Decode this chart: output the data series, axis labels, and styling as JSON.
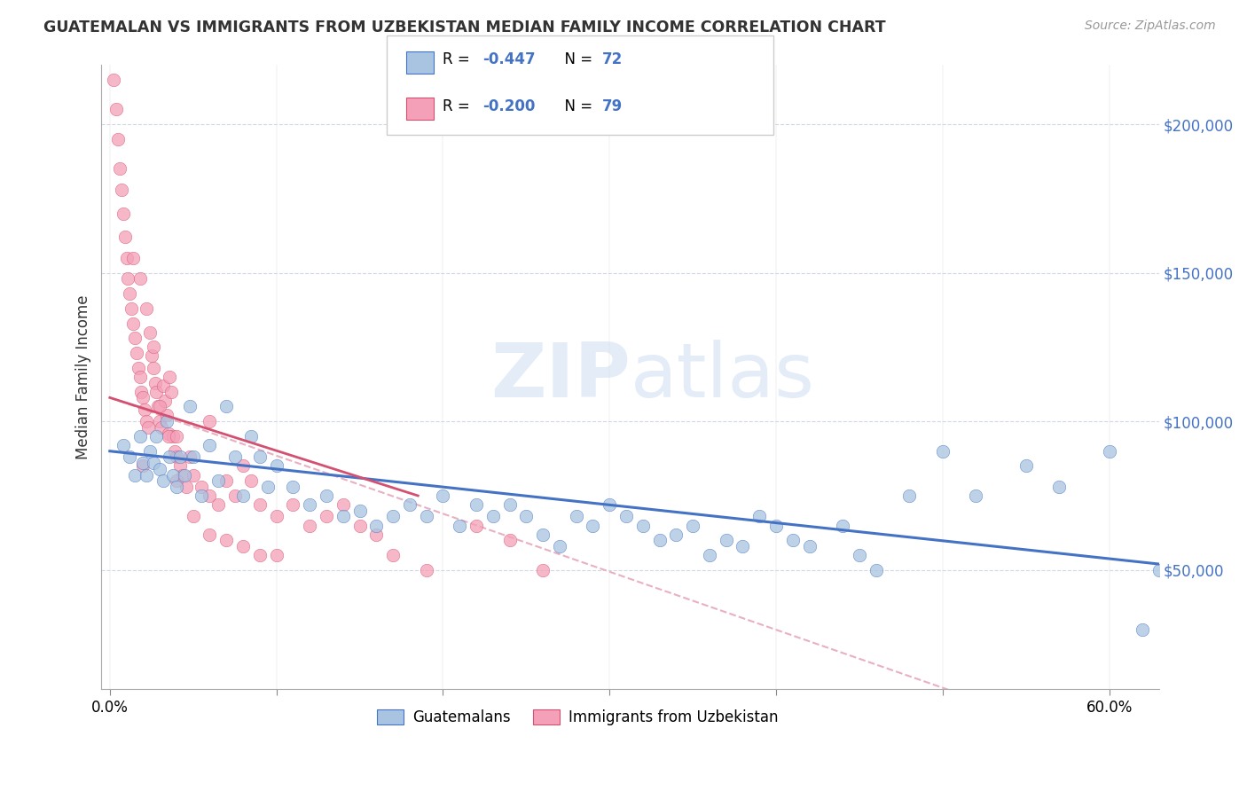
{
  "title": "GUATEMALAN VS IMMIGRANTS FROM UZBEKISTAN MEDIAN FAMILY INCOME CORRELATION CHART",
  "source": "Source: ZipAtlas.com",
  "ylabel": "Median Family Income",
  "watermark": "ZIPatlas",
  "legend_blue_label": "Guatemalans",
  "legend_pink_label": "Immigrants from Uzbekistan",
  "blue_color": "#a8c4e0",
  "pink_color": "#f4a0b8",
  "trend_blue_color": "#4472c4",
  "trend_pink_color": "#d45070",
  "r_value_color": "#4472c4",
  "n_value_color": "#4472c4",
  "ytick_color": "#4472c4",
  "xlim": [
    -0.005,
    0.63
  ],
  "ylim": [
    10000,
    220000
  ],
  "blue_scatter_x": [
    0.008,
    0.012,
    0.015,
    0.018,
    0.02,
    0.022,
    0.024,
    0.026,
    0.028,
    0.03,
    0.032,
    0.034,
    0.036,
    0.038,
    0.04,
    0.042,
    0.045,
    0.048,
    0.05,
    0.055,
    0.06,
    0.065,
    0.07,
    0.075,
    0.08,
    0.085,
    0.09,
    0.095,
    0.1,
    0.11,
    0.12,
    0.13,
    0.14,
    0.15,
    0.16,
    0.17,
    0.18,
    0.19,
    0.2,
    0.21,
    0.22,
    0.23,
    0.24,
    0.25,
    0.26,
    0.27,
    0.28,
    0.29,
    0.3,
    0.31,
    0.32,
    0.33,
    0.34,
    0.35,
    0.36,
    0.37,
    0.38,
    0.39,
    0.4,
    0.41,
    0.42,
    0.44,
    0.45,
    0.46,
    0.48,
    0.5,
    0.52,
    0.55,
    0.57,
    0.6,
    0.62,
    0.63
  ],
  "blue_scatter_y": [
    92000,
    88000,
    82000,
    95000,
    86000,
    82000,
    90000,
    86000,
    95000,
    84000,
    80000,
    100000,
    88000,
    82000,
    78000,
    88000,
    82000,
    105000,
    88000,
    75000,
    92000,
    80000,
    105000,
    88000,
    75000,
    95000,
    88000,
    78000,
    85000,
    78000,
    72000,
    75000,
    68000,
    70000,
    65000,
    68000,
    72000,
    68000,
    75000,
    65000,
    72000,
    68000,
    72000,
    68000,
    62000,
    58000,
    68000,
    65000,
    72000,
    68000,
    65000,
    60000,
    62000,
    65000,
    55000,
    60000,
    58000,
    68000,
    65000,
    60000,
    58000,
    65000,
    55000,
    50000,
    75000,
    90000,
    75000,
    85000,
    78000,
    90000,
    30000,
    50000
  ],
  "pink_scatter_x": [
    0.002,
    0.004,
    0.005,
    0.006,
    0.007,
    0.008,
    0.009,
    0.01,
    0.011,
    0.012,
    0.013,
    0.014,
    0.015,
    0.016,
    0.017,
    0.018,
    0.019,
    0.02,
    0.021,
    0.022,
    0.023,
    0.024,
    0.025,
    0.026,
    0.027,
    0.028,
    0.029,
    0.03,
    0.031,
    0.032,
    0.033,
    0.034,
    0.035,
    0.036,
    0.037,
    0.038,
    0.039,
    0.04,
    0.042,
    0.044,
    0.046,
    0.048,
    0.05,
    0.055,
    0.06,
    0.065,
    0.07,
    0.075,
    0.08,
    0.085,
    0.09,
    0.1,
    0.11,
    0.12,
    0.13,
    0.14,
    0.15,
    0.16,
    0.17,
    0.19,
    0.22,
    0.24,
    0.26,
    0.014,
    0.018,
    0.022,
    0.026,
    0.03,
    0.035,
    0.04,
    0.05,
    0.06,
    0.07,
    0.08,
    0.09,
    0.1,
    0.06,
    0.04,
    0.02
  ],
  "pink_scatter_y": [
    215000,
    205000,
    195000,
    185000,
    178000,
    170000,
    162000,
    155000,
    148000,
    143000,
    138000,
    133000,
    128000,
    123000,
    118000,
    115000,
    110000,
    108000,
    104000,
    100000,
    98000,
    130000,
    122000,
    118000,
    113000,
    110000,
    105000,
    100000,
    98000,
    112000,
    107000,
    102000,
    96000,
    115000,
    110000,
    95000,
    90000,
    88000,
    85000,
    82000,
    78000,
    88000,
    82000,
    78000,
    75000,
    72000,
    80000,
    75000,
    85000,
    80000,
    72000,
    68000,
    72000,
    65000,
    68000,
    72000,
    65000,
    62000,
    55000,
    50000,
    65000,
    60000,
    50000,
    155000,
    148000,
    138000,
    125000,
    105000,
    95000,
    80000,
    68000,
    62000,
    60000,
    58000,
    55000,
    55000,
    100000,
    95000,
    85000
  ],
  "blue_trend": [
    0.0,
    0.63,
    90000,
    52000
  ],
  "pink_trend": [
    0.0,
    0.185,
    108000,
    75000
  ],
  "pink_dashed_trend": [
    0.0,
    0.63,
    108000,
    -15000
  ]
}
